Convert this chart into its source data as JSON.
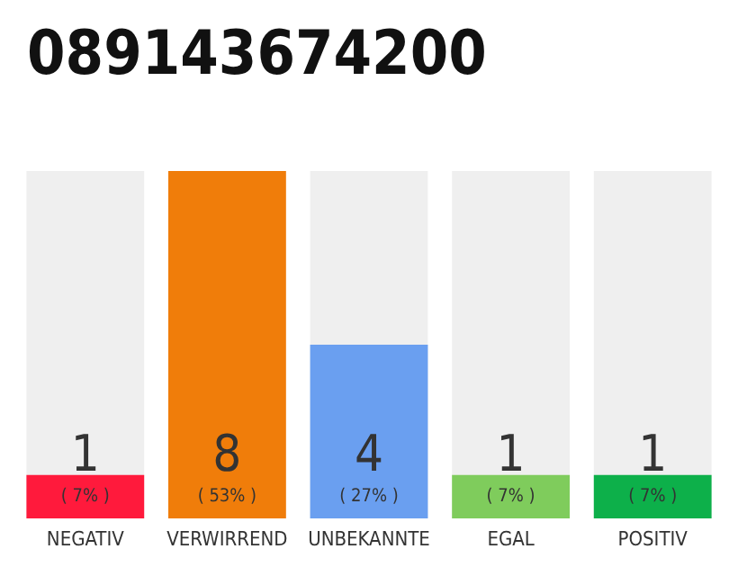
{
  "chart_data": {
    "type": "bar",
    "title": "089143674200",
    "categories": [
      "NEGATIV",
      "VERWIRREND",
      "UNBEKANNTE",
      "EGAL",
      "POSITIV"
    ],
    "values": [
      1,
      8,
      4,
      1,
      1
    ],
    "colors": [
      "#ff1a3c",
      "#f07d0a",
      "#6a9ff0",
      "#7fcc5c",
      "#0db04a"
    ],
    "value_labels": [
      "1\n( 7% )",
      "8\n( 53% )",
      "4\n( 27% )",
      "1\n( 7% )",
      "1\n( 7% )"
    ]
  }
}
